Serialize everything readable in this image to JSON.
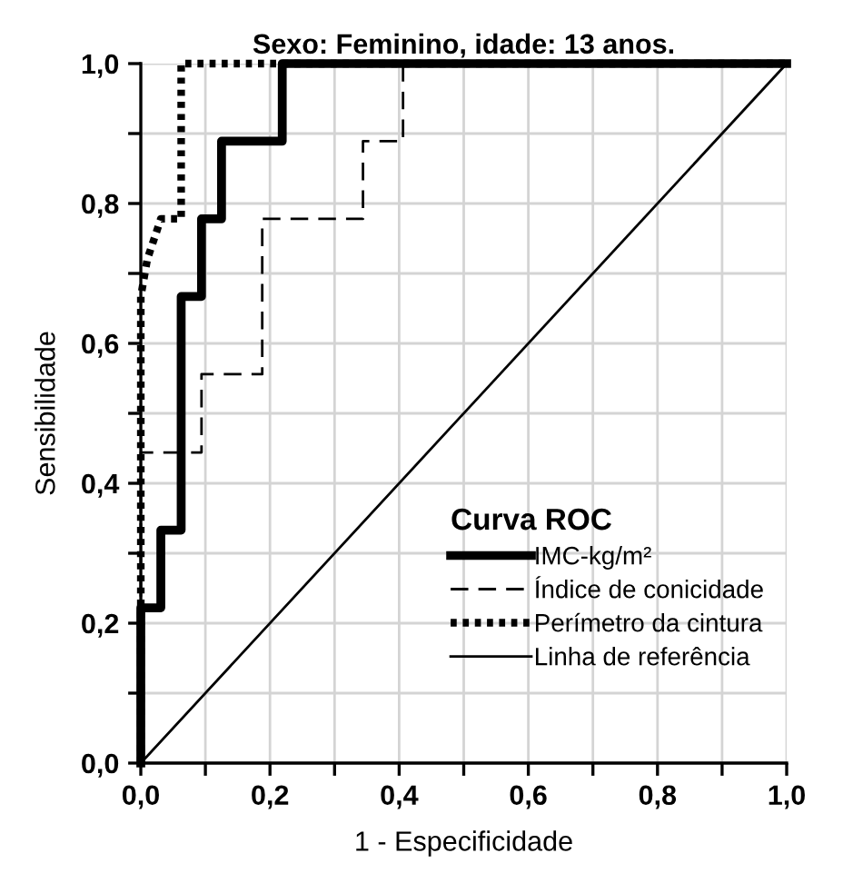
{
  "chart_data": {
    "type": "line",
    "title": "Sexo: Feminino, idade: 13 anos.",
    "xlabel": "1 - Especificidade",
    "ylabel": "Sensibilidade",
    "legend_title": "Curva ROC",
    "series": [
      {
        "name": "IMC-kg/m²",
        "color": "#000000",
        "line_style": "solid",
        "x": [
          0,
          0,
          0.031,
          0.031,
          0.0625,
          0.0625,
          0.094,
          0.094,
          0.125,
          0.125,
          0.219,
          0.219,
          1
        ],
        "values": [
          0,
          0.222,
          0.222,
          0.333,
          0.333,
          0.667,
          0.667,
          0.778,
          0.778,
          0.889,
          0.889,
          1,
          1
        ]
      },
      {
        "name": "Índice de conicidade",
        "color": "#000000",
        "line_style": "dashed",
        "x": [
          0,
          0,
          0.094,
          0.094,
          0.188,
          0.188,
          0.344,
          0.344,
          0.406,
          0.406,
          1
        ],
        "values": [
          0,
          0.444,
          0.444,
          0.556,
          0.556,
          0.778,
          0.778,
          0.889,
          0.889,
          1,
          1
        ]
      },
      {
        "name": "Perímetro da cintura",
        "color": "#000000",
        "line_style": "dotted",
        "x": [
          0,
          0,
          0.01,
          0.031,
          0.0625,
          0.0625,
          1
        ],
        "values": [
          0,
          0.667,
          0.72,
          0.778,
          0.778,
          1,
          1
        ]
      },
      {
        "name": "Linha de referência",
        "color": "#000000",
        "line_style": "solid",
        "x": [
          0,
          1
        ],
        "values": [
          0,
          1
        ]
      }
    ],
    "xlim": [
      0,
      1
    ],
    "ylim": [
      0,
      1
    ],
    "xticks": [
      {
        "value": 0,
        "label": "0,0"
      },
      {
        "value": 0.1,
        "label": null
      },
      {
        "value": 0.2,
        "label": "0,2"
      },
      {
        "value": 0.3,
        "label": null
      },
      {
        "value": 0.4,
        "label": "0,4"
      },
      {
        "value": 0.5,
        "label": null
      },
      {
        "value": 0.6,
        "label": "0,6"
      },
      {
        "value": 0.7,
        "label": null
      },
      {
        "value": 0.8,
        "label": "0,8"
      },
      {
        "value": 0.9,
        "label": null
      },
      {
        "value": 1,
        "label": "1,0"
      }
    ],
    "yticks": [
      {
        "value": 0,
        "label": "0,0"
      },
      {
        "value": 0.1,
        "label": null
      },
      {
        "value": 0.2,
        "label": "0,2"
      },
      {
        "value": 0.3,
        "label": null
      },
      {
        "value": 0.4,
        "label": "0,4"
      },
      {
        "value": 0.5,
        "label": null
      },
      {
        "value": 0.6,
        "label": "0,6"
      },
      {
        "value": 0.7,
        "label": null
      },
      {
        "value": 0.8,
        "label": "0,8"
      },
      {
        "value": 0.9,
        "label": null
      },
      {
        "value": 1,
        "label": "1,0"
      }
    ],
    "grid": true,
    "legend": "bottom right",
    "marker": "none"
  }
}
